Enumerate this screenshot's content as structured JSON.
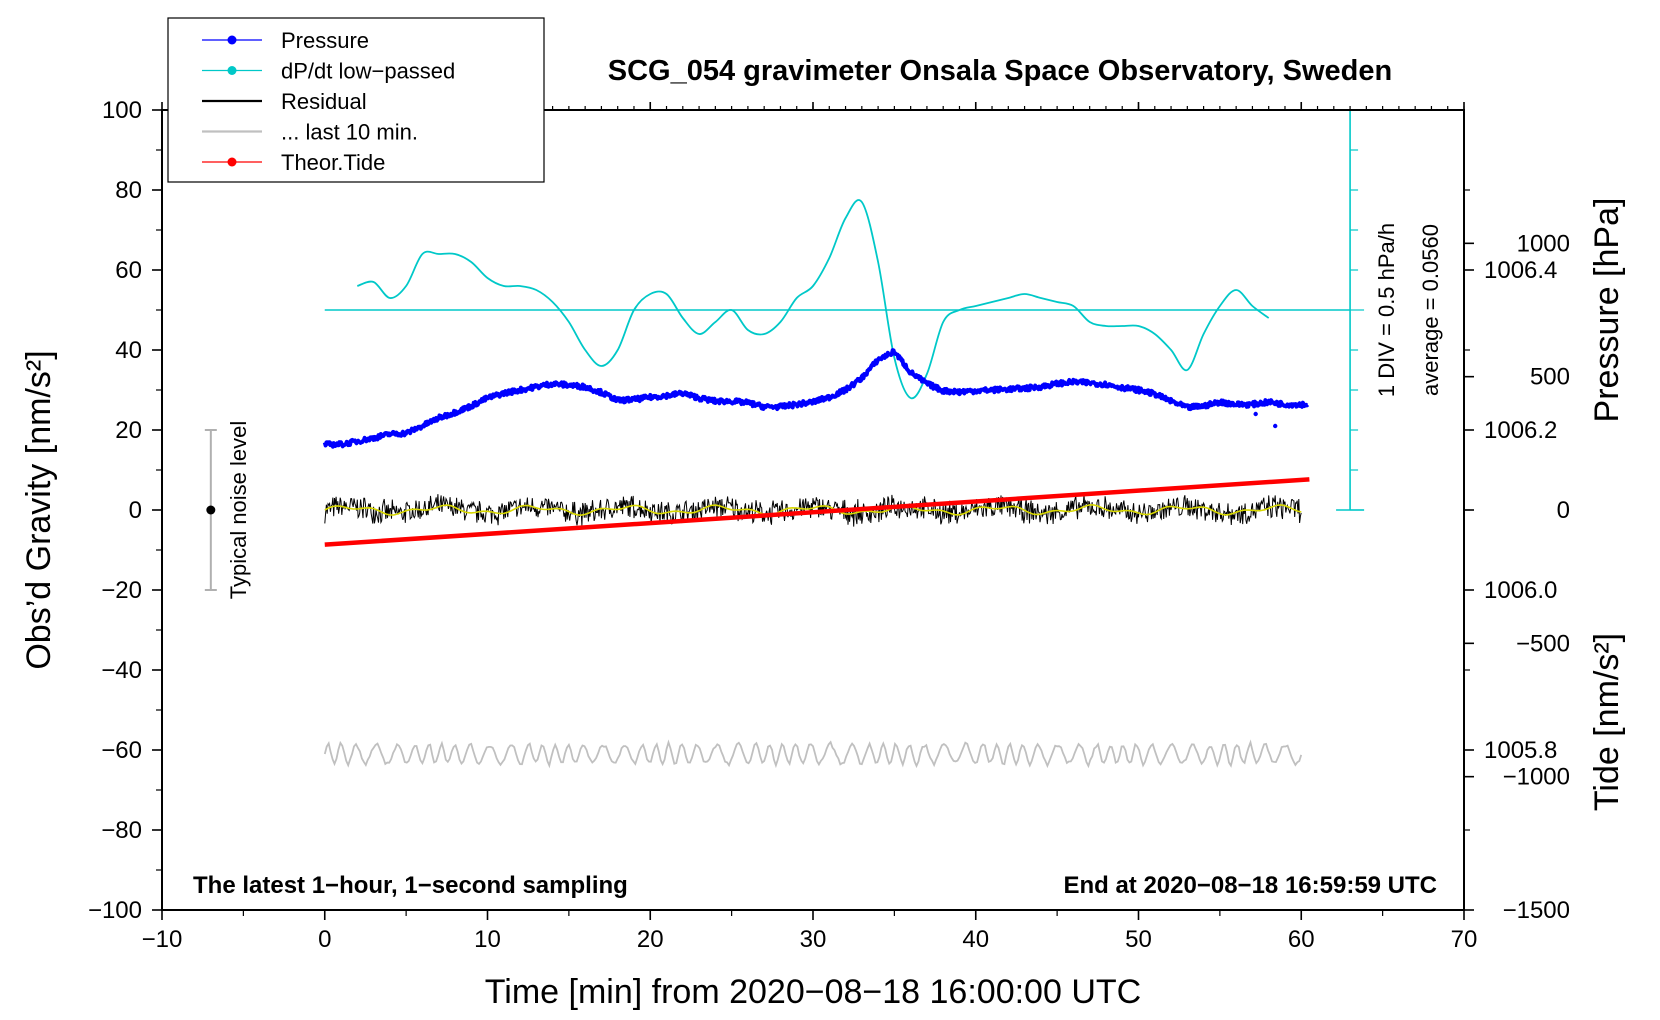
{
  "chart_data": {
    "type": "line",
    "title": "SCG_054 gravimeter Onsala Space Observatory, Sweden",
    "xlabel": "Time [min] from 2020−08−18 16:00:00 UTC",
    "ylabel_left": "Obs’d Gravity [nm/s²]",
    "ylabel_right_top": "Pressure [hPa]",
    "ylabel_right_bottom": "Tide [nm/s²]",
    "xlim": [
      -10,
      70
    ],
    "ylim": [
      -100,
      100
    ],
    "pressure_lim": [
      1005.6,
      1006.6
    ],
    "tide_lim": [
      -1500,
      1500
    ],
    "x_ticks": [
      -10,
      0,
      10,
      20,
      30,
      40,
      50,
      60,
      70
    ],
    "x_tick_labels": [
      "−10",
      "0",
      "10",
      "20",
      "30",
      "40",
      "50",
      "60",
      "70"
    ],
    "y_ticks": [
      -100,
      -80,
      -60,
      -40,
      -20,
      0,
      20,
      40,
      60,
      80,
      100
    ],
    "y_tick_labels": [
      "−100",
      "−80",
      "−60",
      "−40",
      "−20",
      "0",
      "20",
      "40",
      "60",
      "80",
      "100"
    ],
    "pressure_ticks": [
      1005.8,
      1006.0,
      1006.2,
      1006.4
    ],
    "pressure_tick_labels": [
      "1005.8",
      "1006.0",
      "1006.2",
      "1006.4"
    ],
    "tide_ticks": [
      -1500,
      -1000,
      -500,
      0,
      500,
      1000
    ],
    "tide_tick_labels": [
      "−1500",
      "−1000",
      "−500",
      "0",
      "500",
      "1000"
    ],
    "legend": {
      "position": "top-left",
      "entries": [
        {
          "label": "Pressure",
          "color": "#0000ff",
          "marker": true
        },
        {
          "label": "dP/dt low−passed",
          "color": "#00c8c8",
          "marker": true
        },
        {
          "label": "Residual",
          "color": "#000000",
          "marker": false
        },
        {
          "label": "... last 10 min.",
          "color": "#c0c0c0",
          "marker": false
        },
        {
          "label": "Theor.Tide",
          "color": "#ff0000",
          "marker": true
        }
      ]
    },
    "series": [
      {
        "name": "Pressure",
        "axis": "pressure",
        "color": "#0000ff",
        "x": [
          0,
          1,
          2,
          3,
          4,
          5,
          6,
          7,
          8,
          9,
          10,
          11,
          12,
          13,
          14,
          15,
          16,
          17,
          18,
          19,
          20,
          21,
          22,
          23,
          24,
          25,
          26,
          27,
          28,
          29,
          30,
          31,
          32,
          33,
          34,
          35,
          36,
          37,
          38,
          39,
          40,
          41,
          42,
          43,
          44,
          45,
          46,
          47,
          48,
          49,
          50,
          51,
          52,
          53,
          54,
          55,
          56,
          57,
          58,
          59,
          60
        ],
        "values": [
          1006.182,
          1006.182,
          1006.186,
          1006.19,
          1006.195,
          1006.196,
          1006.205,
          1006.215,
          1006.222,
          1006.23,
          1006.24,
          1006.246,
          1006.25,
          1006.254,
          1006.258,
          1006.256,
          1006.254,
          1006.247,
          1006.237,
          1006.238,
          1006.241,
          1006.243,
          1006.246,
          1006.24,
          1006.236,
          1006.236,
          1006.234,
          1006.229,
          1006.229,
          1006.232,
          1006.235,
          1006.241,
          1006.25,
          1006.265,
          1006.288,
          1006.298,
          1006.272,
          1006.258,
          1006.249,
          1006.248,
          1006.249,
          1006.25,
          1006.251,
          1006.252,
          1006.254,
          1006.258,
          1006.26,
          1006.259,
          1006.257,
          1006.253,
          1006.25,
          1006.245,
          1006.236,
          1006.228,
          1006.23,
          1006.235,
          1006.232,
          1006.232,
          1006.235,
          1006.232,
          1006.232
        ]
      },
      {
        "name": "dP/dt low−passed",
        "axis": "gravity",
        "color": "#00c8c8",
        "x": [
          2,
          3,
          4,
          5,
          6,
          7,
          8,
          9,
          10,
          11,
          12,
          13,
          14,
          15,
          16,
          17,
          18,
          19,
          20,
          21,
          22,
          23,
          24,
          25,
          26,
          27,
          28,
          29,
          30,
          31,
          32,
          33,
          34,
          35,
          36,
          37,
          38,
          39,
          40,
          41,
          42,
          43,
          44,
          45,
          46,
          47,
          48,
          49,
          50,
          51,
          52,
          53,
          54,
          55,
          56,
          57,
          58
        ],
        "values": [
          56,
          57,
          53,
          56,
          64,
          64,
          64,
          62,
          58,
          56,
          56,
          55,
          52,
          47,
          40,
          36,
          40,
          50,
          54,
          54,
          48,
          44,
          47,
          50,
          45,
          44,
          47,
          53,
          56,
          63,
          73,
          77,
          62,
          38,
          28,
          34,
          47,
          50,
          51,
          52,
          53,
          54,
          53,
          52,
          51,
          47,
          46,
          46,
          46,
          44,
          40,
          35,
          44,
          51,
          55,
          51,
          48
        ]
      },
      {
        "name": "Residual",
        "axis": "gravity",
        "color": "#000000",
        "x_range": [
          0,
          60
        ],
        "approx_mean": 0,
        "approx_amplitude": 3.5
      },
      {
        "name": "... last 10 min.",
        "axis": "gravity",
        "color": "#c0c0c0",
        "x_range": [
          0,
          60
        ],
        "approx_mean": -61,
        "approx_amplitude": 3
      },
      {
        "name": "Theor.Tide",
        "axis": "tide",
        "color": "#ff0000",
        "x": [
          0,
          60.5
        ],
        "values": [
          -130,
          115
        ]
      }
    ],
    "pressure_scale_bar": {
      "x": 63,
      "from": 0,
      "to": 100,
      "reference_level": 50
    },
    "annotations": {
      "noise": {
        "label": "Typical noise level",
        "x": -7,
        "center": 0,
        "range": [
          -20,
          20
        ]
      },
      "scale": "1 DIV = 0.5 hPa/h",
      "average": "average = 0.0560",
      "bottom_left": "The latest 1−hour, 1−second sampling",
      "bottom_right": "End at 2020−08−18 16:59:59 UTC"
    }
  }
}
